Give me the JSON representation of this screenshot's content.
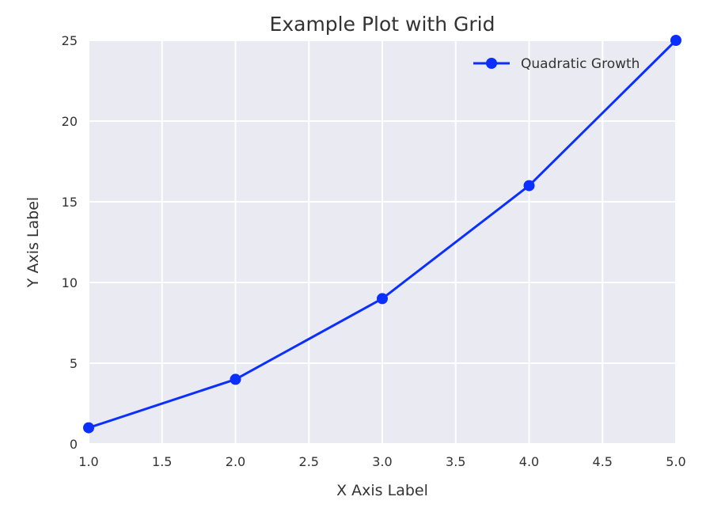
{
  "chart_data": {
    "type": "line",
    "title": "Example Plot with Grid",
    "xlabel": "X Axis Label",
    "ylabel": "Y Axis Label",
    "xlim": [
      1.0,
      5.0
    ],
    "ylim": [
      0,
      25
    ],
    "xticks": [
      "1.0",
      "1.5",
      "2.0",
      "2.5",
      "3.0",
      "3.5",
      "4.0",
      "4.5",
      "5.0"
    ],
    "yticks": [
      "0",
      "5",
      "10",
      "15",
      "20",
      "25"
    ],
    "grid": true,
    "legend_position": "top-right",
    "background_color": "#eaeaf2",
    "grid_color": "#ffffff",
    "series": [
      {
        "name": "Quadratic Growth",
        "color": "#0a2fff",
        "marker": "circle",
        "x": [
          1,
          2,
          3,
          4,
          5
        ],
        "y": [
          1,
          4,
          9,
          16,
          25
        ]
      }
    ]
  }
}
